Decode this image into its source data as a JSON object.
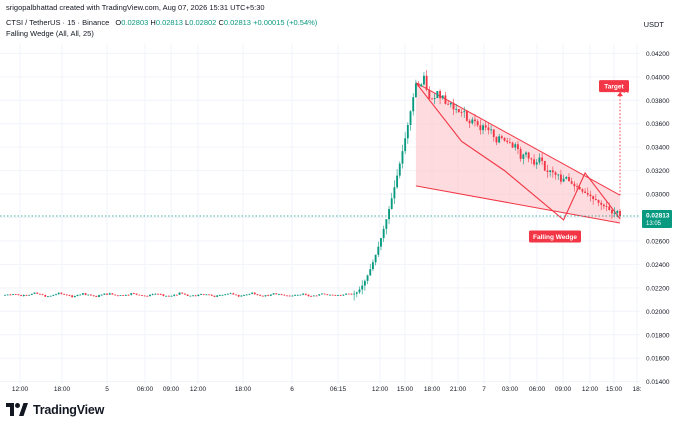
{
  "header": {
    "attribution": "srigopalbhattad created with TradingView.com, Aug 07, 2026 15:31 UTC+5:30",
    "symbol": "CTSI / TetherUS · 15 · Binance",
    "open_label": "O",
    "open": "0.02803",
    "high_label": "H",
    "high": "0.02813",
    "low_label": "L",
    "low": "0.02802",
    "close_label": "C",
    "close": "0.02813",
    "change": "+0.00015 (+0.54%)",
    "indicator": "Falling Wedge (All, All, 25)"
  },
  "currency": "USDT",
  "brand": {
    "logo_icon": "tradingview-logo-icon",
    "text": "TradingView"
  },
  "colors": {
    "up": "#089981",
    "down": "#f23645",
    "pattern": "#f23645",
    "fill": "#fccfd3",
    "grid": "#f0f3fa"
  },
  "chart_data": {
    "type": "candlestick",
    "title": "CTSI / TetherUS · 15 · Binance",
    "xlabel": "",
    "ylabel": "USDT",
    "x_ticks": [
      "12:00",
      "18:00",
      "5",
      "06:00",
      "09:00",
      "12:00",
      "18:00",
      "6",
      "06:15",
      "12:00",
      "15:00",
      "18:00",
      "21:00",
      "7",
      "03:00",
      "06:00",
      "09:00",
      "12:00",
      "15:00",
      "18:"
    ],
    "y_ticks": [
      "0.01400",
      "0.01600",
      "0.01800",
      "0.02000",
      "0.02200",
      "0.02400",
      "0.02600",
      "0.02800",
      "0.03000",
      "0.03200",
      "0.03400",
      "0.03600",
      "0.03800",
      "0.04000",
      "0.04200"
    ],
    "ylim": [
      0.0138,
      0.0428
    ],
    "grid": true,
    "current_price": {
      "value": "0.02813",
      "countdown": "13:05"
    },
    "series": [
      {
        "segment": "consolidation",
        "from": "12:00",
        "to": "06:15",
        "range": [
          0.0212,
          0.0216
        ]
      },
      {
        "segment": "rally",
        "from": "06:15",
        "to": "18:00",
        "start": 0.0215,
        "peak": 0.0395
      },
      {
        "segment": "falling-wedge",
        "from": "18:00",
        "to": "15:00",
        "start": 0.0395,
        "end": 0.02813
      }
    ],
    "annotations": [
      {
        "label": "Falling Wedge",
        "type": "pattern"
      },
      {
        "label": "Target",
        "value": 0.0387
      }
    ]
  }
}
